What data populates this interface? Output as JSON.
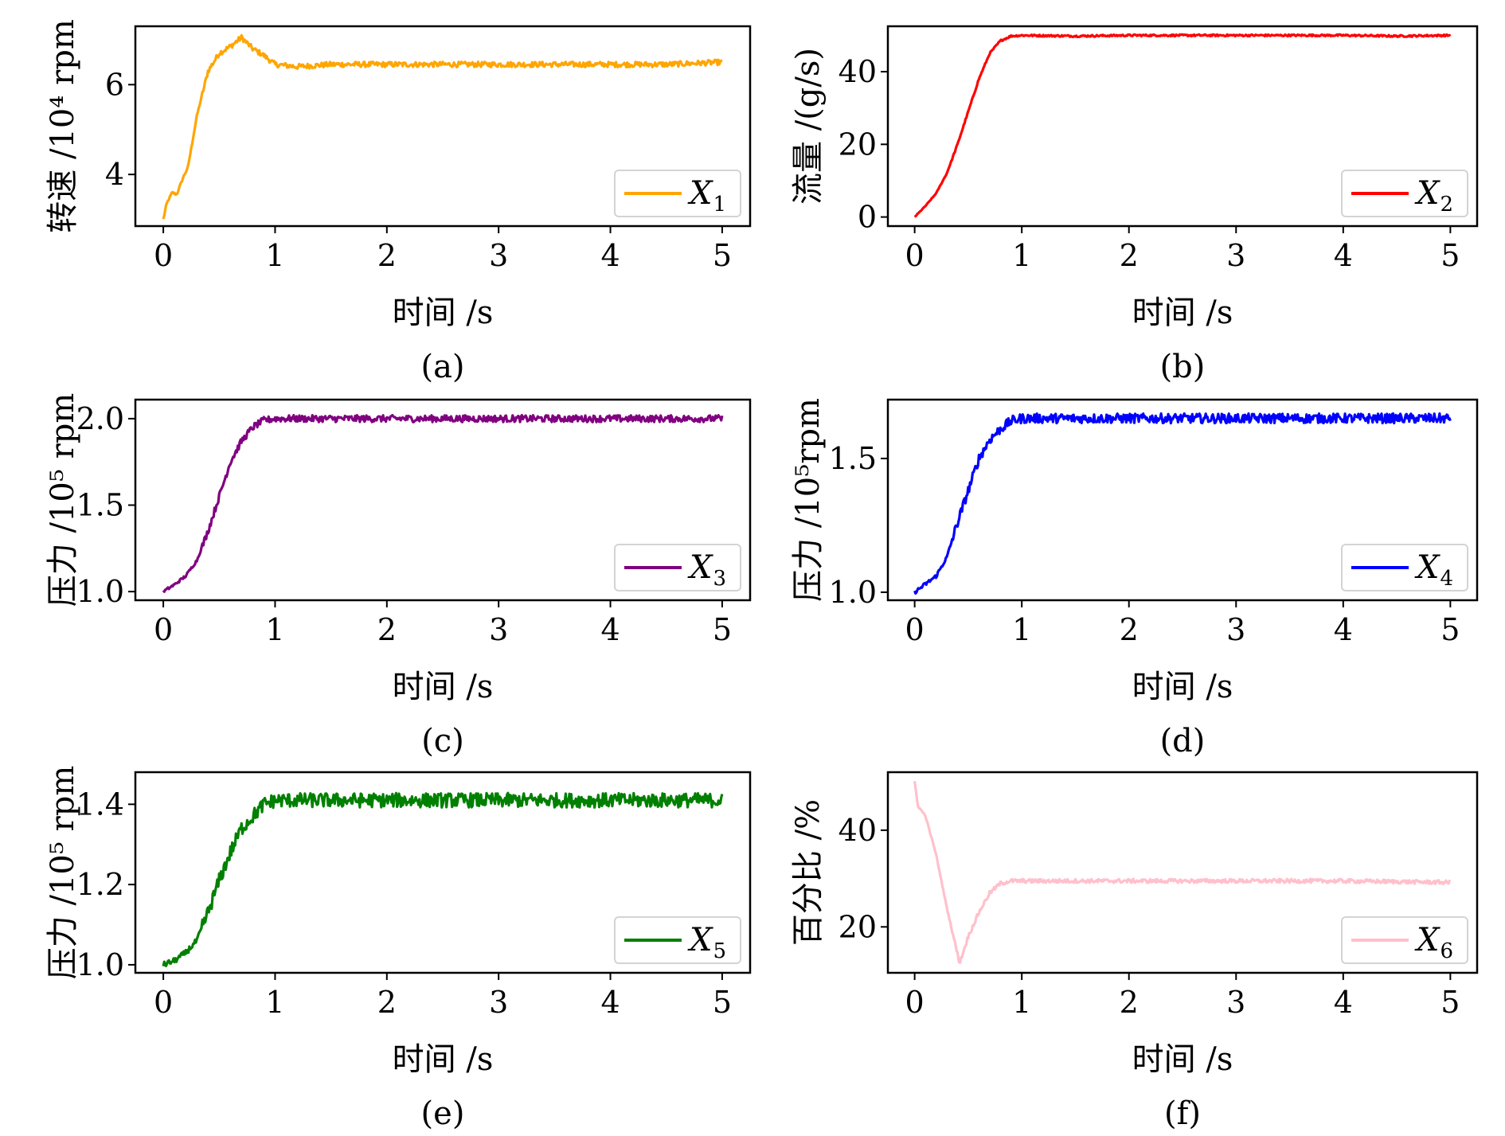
{
  "chart_data": [
    {
      "id": "a",
      "type": "line",
      "caption": "(a)",
      "xlabel": "时间 /s",
      "ylabel": "转速 /10⁴ rpm",
      "xlim": [
        -0.25,
        5.25
      ],
      "ylim": [
        2.85,
        7.3
      ],
      "xticks": [
        0,
        1,
        2,
        3,
        4,
        5
      ],
      "yticks": [
        4,
        6
      ],
      "ytick_labels": [
        "4",
        "6"
      ],
      "grid": false,
      "legend": {
        "label": "X",
        "sub": "1",
        "position": "lower-right"
      },
      "series": [
        {
          "name": "X1",
          "color": "#FFA500",
          "noise": 0.06,
          "x": [
            0,
            0.03,
            0.08,
            0.12,
            0.18,
            0.22,
            0.3,
            0.4,
            0.5,
            0.6,
            0.7,
            0.8,
            0.9,
            1.0,
            1.2,
            1.5,
            2.0,
            2.5,
            3.0,
            3.5,
            4.0,
            4.5,
            5.0
          ],
          "y": [
            3.0,
            3.35,
            3.6,
            3.55,
            3.95,
            4.15,
            5.3,
            6.3,
            6.7,
            6.85,
            7.05,
            6.8,
            6.65,
            6.45,
            6.4,
            6.45,
            6.45,
            6.45,
            6.45,
            6.45,
            6.45,
            6.45,
            6.5
          ]
        }
      ]
    },
    {
      "id": "b",
      "type": "line",
      "caption": "(b)",
      "xlabel": "时间 /s",
      "ylabel": "流量 /(g/s)",
      "xlim": [
        -0.25,
        5.25
      ],
      "ylim": [
        -2.5,
        52.5
      ],
      "xticks": [
        0,
        1,
        2,
        3,
        4,
        5
      ],
      "yticks": [
        0,
        20,
        40
      ],
      "ytick_labels": [
        "0",
        "20",
        "40"
      ],
      "grid": false,
      "legend": {
        "label": "X",
        "sub": "2",
        "position": "lower-right"
      },
      "series": [
        {
          "name": "X2",
          "color": "#FF0000",
          "noise": 0.25,
          "x": [
            0,
            0.1,
            0.2,
            0.3,
            0.4,
            0.5,
            0.6,
            0.7,
            0.8,
            0.9,
            1.0,
            1.5,
            2.0,
            3.0,
            4.0,
            4.5,
            5.0
          ],
          "y": [
            0,
            3,
            6.5,
            12,
            20,
            29,
            38,
            45,
            48.5,
            49.8,
            50,
            49.8,
            50,
            50,
            50,
            49.8,
            50
          ]
        }
      ]
    },
    {
      "id": "c",
      "type": "line",
      "caption": "(c)",
      "xlabel": "时间 /s",
      "ylabel": "压力 /10⁵ rpm",
      "xlim": [
        -0.25,
        5.25
      ],
      "ylim": [
        0.95,
        2.11
      ],
      "xticks": [
        0,
        1,
        2,
        3,
        4,
        5
      ],
      "yticks": [
        1.0,
        1.5,
        2.0
      ],
      "ytick_labels": [
        "1.0",
        "1.5",
        "2.0"
      ],
      "grid": false,
      "legend": {
        "label": "X",
        "sub": "3",
        "position": "lower-right"
      },
      "series": [
        {
          "name": "X3",
          "color": "#800080",
          "noise": 0.02,
          "x": [
            0,
            0.1,
            0.2,
            0.3,
            0.4,
            0.5,
            0.6,
            0.7,
            0.8,
            0.9,
            1.0,
            2.0,
            3.0,
            4.0,
            5.0
          ],
          "y": [
            1.0,
            1.04,
            1.09,
            1.18,
            1.35,
            1.55,
            1.75,
            1.87,
            1.95,
            1.99,
            2.0,
            2.0,
            2.0,
            2.0,
            2.0
          ]
        }
      ]
    },
    {
      "id": "d",
      "type": "line",
      "caption": "(d)",
      "xlabel": "时间 /s",
      "ylabel": "压力 /10⁵rpm",
      "xlim": [
        -0.25,
        5.25
      ],
      "ylim": [
        0.97,
        1.72
      ],
      "xticks": [
        0,
        1,
        2,
        3,
        4,
        5
      ],
      "yticks": [
        1.0,
        1.5
      ],
      "ytick_labels": [
        "1.0",
        "1.5"
      ],
      "grid": false,
      "legend": {
        "label": "X",
        "sub": "4",
        "position": "lower-right"
      },
      "series": [
        {
          "name": "X4",
          "color": "#0000FF",
          "noise": 0.018,
          "x": [
            0,
            0.1,
            0.2,
            0.3,
            0.4,
            0.5,
            0.6,
            0.7,
            0.8,
            0.9,
            1.0,
            2.0,
            3.0,
            4.0,
            5.0
          ],
          "y": [
            1.0,
            1.03,
            1.06,
            1.13,
            1.26,
            1.38,
            1.5,
            1.57,
            1.61,
            1.64,
            1.65,
            1.65,
            1.65,
            1.65,
            1.65
          ]
        }
      ]
    },
    {
      "id": "e",
      "type": "line",
      "caption": "(e)",
      "xlabel": "时间 /s",
      "ylabel": "压力 /10⁵ rpm",
      "xlim": [
        -0.25,
        5.25
      ],
      "ylim": [
        0.98,
        1.48
      ],
      "xticks": [
        0,
        1,
        2,
        3,
        4,
        5
      ],
      "yticks": [
        1.0,
        1.2,
        1.4
      ],
      "ytick_labels": [
        "1.0",
        "1.2",
        "1.4"
      ],
      "grid": false,
      "legend": {
        "label": "X",
        "sub": "5",
        "position": "lower-right"
      },
      "series": [
        {
          "name": "X5",
          "color": "#008000",
          "noise": 0.018,
          "x": [
            0,
            0.1,
            0.2,
            0.3,
            0.4,
            0.5,
            0.6,
            0.7,
            0.8,
            0.9,
            1.0,
            2.0,
            3.0,
            4.0,
            5.0
          ],
          "y": [
            1.0,
            1.01,
            1.03,
            1.06,
            1.13,
            1.21,
            1.28,
            1.34,
            1.37,
            1.4,
            1.41,
            1.41,
            1.41,
            1.41,
            1.41
          ]
        }
      ]
    },
    {
      "id": "f",
      "type": "line",
      "caption": "(f)",
      "xlabel": "时间 /s",
      "ylabel": "百分比 /%",
      "xlim": [
        -0.25,
        5.25
      ],
      "ylim": [
        10.5,
        52
      ],
      "xticks": [
        0,
        1,
        2,
        3,
        4,
        5
      ],
      "yticks": [
        20,
        40
      ],
      "ytick_labels": [
        "20",
        "40"
      ],
      "grid": false,
      "legend": {
        "label": "X",
        "sub": "6",
        "position": "lower-right"
      },
      "series": [
        {
          "name": "X6",
          "color": "#FFC0CB",
          "noise": 0.4,
          "x": [
            0,
            0.03,
            0.1,
            0.2,
            0.3,
            0.42,
            0.5,
            0.6,
            0.7,
            0.8,
            0.9,
            1.0,
            2.0,
            3.0,
            4.0,
            5.0
          ],
          "y": [
            50,
            45,
            43,
            35,
            24,
            12.5,
            18,
            23,
            27,
            29,
            29.5,
            29.5,
            29.5,
            29.5,
            29.5,
            29.2
          ]
        }
      ]
    }
  ]
}
